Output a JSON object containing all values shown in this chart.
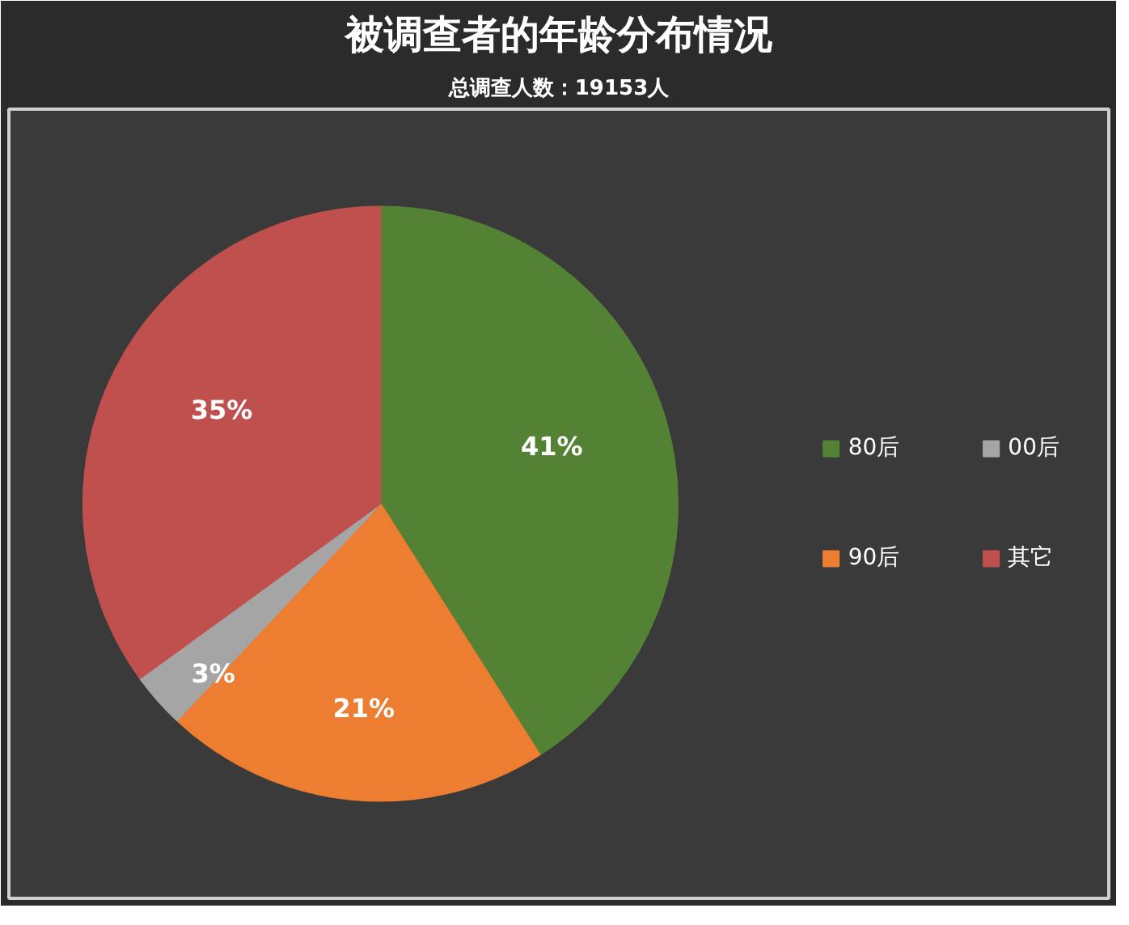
{
  "chart_data": {
    "type": "pie",
    "title": "被调查者的年龄分布情况",
    "subtitle": "总调查人数：19153人",
    "categories": [
      "80后",
      "90后",
      "00后",
      "其它"
    ],
    "values": [
      41,
      21,
      3,
      35
    ],
    "colors": [
      "#548235",
      "#ed7d31",
      "#a5a5a5",
      "#c0504d"
    ],
    "value_labels": [
      "41%",
      "21%",
      "3%",
      "35%"
    ],
    "legend": "right"
  }
}
